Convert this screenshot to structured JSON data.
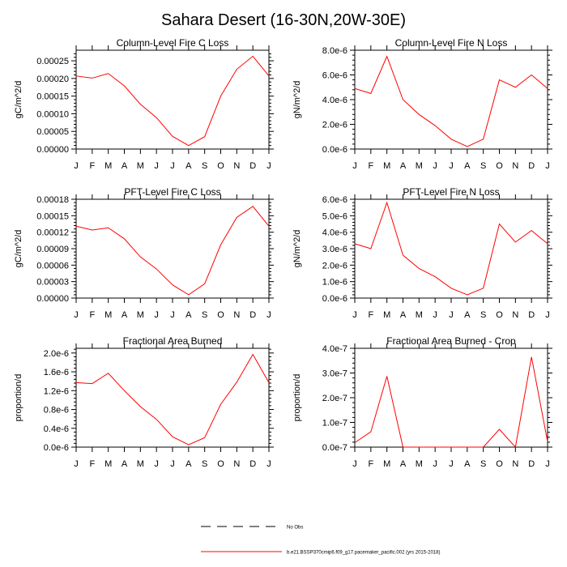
{
  "figure": {
    "title": "Sahara Desert (16-30N,20W-30E)"
  },
  "legend": {
    "entries": [
      {
        "label": "No Obs",
        "style": "dashed",
        "color": "#000000"
      },
      {
        "label": "b.e21.BSSP370cmip6.f09_g17.pacemaker_pacific.002 (yrs 2015-2018)",
        "style": "solid",
        "color": "#ff0000"
      }
    ]
  },
  "chart_data": [
    {
      "type": "line",
      "title": "Column-Level Fire C Loss",
      "ylabel": "gC/m^2/d",
      "categories": [
        "J",
        "F",
        "M",
        "A",
        "M",
        "J",
        "J",
        "A",
        "S",
        "O",
        "N",
        "D",
        "J"
      ],
      "ylim": [
        0,
        0.00028
      ],
      "yticks": [
        "0.00000",
        "0.00005",
        "0.00010",
        "0.00015",
        "0.00020",
        "0.00025"
      ],
      "ytick_values": [
        0,
        5e-05,
        0.0001,
        0.00015,
        0.0002,
        0.00025
      ],
      "series": [
        {
          "color": "#ff0000",
          "values": [
            0.000207,
            0.000201,
            0.000214,
            0.000179,
            0.000127,
            8.9e-05,
            3.6e-05,
            1e-05,
            3.5e-05,
            0.00015,
            0.000226,
            0.000263,
            0.000207
          ]
        }
      ]
    },
    {
      "type": "line",
      "title": "Column-Level Fire N Loss",
      "ylabel": "gN/m^2/d",
      "categories": [
        "J",
        "F",
        "M",
        "A",
        "M",
        "J",
        "J",
        "A",
        "S",
        "O",
        "N",
        "D",
        "J"
      ],
      "ylim": [
        0,
        8e-06
      ],
      "yticks": [
        "0.0e-6",
        "2.0e-6",
        "4.0e-6",
        "6.0e-6",
        "8.0e-6"
      ],
      "ytick_values": [
        0,
        2e-06,
        4e-06,
        6e-06,
        8e-06
      ],
      "series": [
        {
          "color": "#ff0000",
          "values": [
            4.9e-06,
            4.5e-06,
            7.5e-06,
            4e-06,
            2.8e-06,
            1.9e-06,
            8e-07,
            2e-07,
            8e-07,
            5.6e-06,
            5e-06,
            6e-06,
            4.9e-06
          ]
        }
      ]
    },
    {
      "type": "line",
      "title": "PFT-Level Fire C Loss",
      "ylabel": "gC/m^2/d",
      "categories": [
        "J",
        "F",
        "M",
        "A",
        "M",
        "J",
        "J",
        "A",
        "S",
        "O",
        "N",
        "D",
        "J"
      ],
      "ylim": [
        0,
        0.00018
      ],
      "yticks": [
        "0.00000",
        "0.00003",
        "0.00006",
        "0.00009",
        "0.00012",
        "0.00015",
        "0.00018"
      ],
      "ytick_values": [
        0,
        3e-05,
        6e-05,
        9e-05,
        0.00012,
        0.00015,
        0.00018
      ],
      "series": [
        {
          "color": "#ff0000",
          "values": [
            0.000131,
            0.000124,
            0.000128,
            0.000108,
            7.5e-05,
            5.3e-05,
            2.4e-05,
            6e-06,
            2.6e-05,
            9.7e-05,
            0.000147,
            0.000167,
            0.000131
          ]
        }
      ]
    },
    {
      "type": "line",
      "title": "PFT-Level Fire N Loss",
      "ylabel": "gN/m^2/d",
      "categories": [
        "J",
        "F",
        "M",
        "A",
        "M",
        "J",
        "J",
        "A",
        "S",
        "O",
        "N",
        "D",
        "J"
      ],
      "ylim": [
        0,
        6e-06
      ],
      "yticks": [
        "0.0e-6",
        "1.0e-6",
        "2.0e-6",
        "3.0e-6",
        "4.0e-6",
        "5.0e-6",
        "6.0e-6"
      ],
      "ytick_values": [
        0,
        1e-06,
        2e-06,
        3e-06,
        4e-06,
        5e-06,
        6e-06
      ],
      "series": [
        {
          "color": "#ff0000",
          "values": [
            3.3e-06,
            3e-06,
            5.8e-06,
            2.6e-06,
            1.8e-06,
            1.3e-06,
            6e-07,
            2e-07,
            6e-07,
            4.5e-06,
            3.4e-06,
            4.1e-06,
            3.3e-06
          ]
        }
      ]
    },
    {
      "type": "line",
      "title": "Fractional Area Burned",
      "ylabel": "proportion/d",
      "categories": [
        "J",
        "F",
        "M",
        "A",
        "M",
        "J",
        "J",
        "A",
        "S",
        "O",
        "N",
        "D",
        "J"
      ],
      "ylim": [
        0,
        2.1e-06
      ],
      "yticks": [
        "0.0e-6",
        "0.4e-6",
        "0.8e-6",
        "1.2e-6",
        "1.6e-6",
        "2.0e-6"
      ],
      "ytick_values": [
        0,
        4e-07,
        8e-07,
        1.2e-06,
        1.6e-06,
        2e-06
      ],
      "series": [
        {
          "color": "#ff0000",
          "values": [
            1.37e-06,
            1.35e-06,
            1.57e-06,
            1.2e-06,
            8.6e-07,
            5.9e-07,
            2.2e-07,
            5e-08,
            2e-07,
            9.1e-07,
            1.38e-06,
            1.97e-06,
            1.37e-06
          ]
        }
      ]
    },
    {
      "type": "line",
      "title": "Fractional Area Burned - Crop",
      "ylabel": "proportion/d",
      "categories": [
        "J",
        "F",
        "M",
        "A",
        "M",
        "J",
        "J",
        "A",
        "S",
        "O",
        "N",
        "D",
        "J"
      ],
      "ylim": [
        0,
        4e-07
      ],
      "yticks": [
        "0.0e-7",
        "1.0e-7",
        "2.0e-7",
        "3.0e-7",
        "4.0e-7"
      ],
      "ytick_values": [
        0,
        1e-07,
        2e-07,
        3e-07,
        4e-07
      ],
      "series": [
        {
          "color": "#ff0000",
          "values": [
            1.8e-08,
            6.2e-08,
            2.87e-07,
            0.0,
            0.0,
            0.0,
            0.0,
            0.0,
            0.0,
            7.2e-08,
            0.0,
            3.65e-07,
            2.2e-08
          ]
        }
      ]
    }
  ]
}
